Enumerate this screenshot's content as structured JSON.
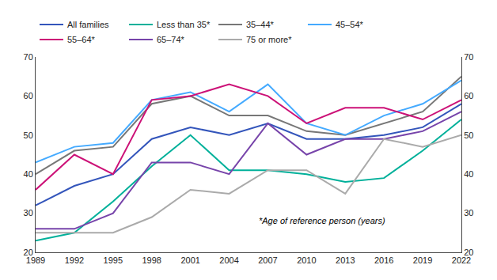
{
  "chart_data": {
    "type": "line",
    "x": [
      1989,
      1992,
      1995,
      1998,
      2001,
      2004,
      2007,
      2010,
      2013,
      2016,
      2019,
      2022
    ],
    "series": [
      {
        "name": "All families",
        "color": "#3355bb",
        "values": [
          32,
          37,
          40,
          49,
          52,
          50,
          53,
          49,
          49,
          50,
          52,
          58
        ]
      },
      {
        "name": "Less than 35*",
        "color": "#00b09a",
        "values": [
          23,
          25,
          33,
          42,
          50,
          41,
          41,
          40,
          38,
          39,
          46,
          54
        ]
      },
      {
        "name": "35–44*",
        "color": "#777777",
        "values": [
          40,
          46,
          47,
          58,
          60,
          55,
          55,
          51,
          50,
          53,
          56,
          65
        ]
      },
      {
        "name": "45–54*",
        "color": "#44aaff",
        "values": [
          43,
          47,
          48,
          59,
          61,
          56,
          63,
          53,
          50,
          55,
          58,
          64
        ]
      },
      {
        "name": "55–64*",
        "color": "#cc1177",
        "values": [
          36,
          45,
          40,
          59,
          60,
          63,
          60,
          53,
          57,
          57,
          54,
          59
        ]
      },
      {
        "name": "65–74*",
        "color": "#7744aa",
        "values": [
          26,
          26,
          30,
          43,
          43,
          40,
          53,
          45,
          49,
          49,
          51,
          56
        ]
      },
      {
        "name": "75 or more*",
        "color": "#aaaaaa",
        "values": [
          25,
          25,
          25,
          29,
          36,
          35,
          41,
          41,
          35,
          49,
          47,
          50
        ]
      }
    ],
    "xlim": [
      1989,
      2022
    ],
    "xticks": [
      1989,
      1992,
      1995,
      1998,
      2001,
      2004,
      2007,
      2010,
      2013,
      2016,
      2019,
      2022
    ],
    "ylim": [
      20,
      70
    ],
    "yticks": [
      20,
      30,
      40,
      50,
      60,
      70
    ],
    "y2lim": [
      20,
      70
    ],
    "y2ticks": [
      20,
      30,
      40,
      50,
      60,
      70
    ],
    "annotation": "*Age of reference person (years)",
    "grid": false,
    "legend": "upper left"
  }
}
